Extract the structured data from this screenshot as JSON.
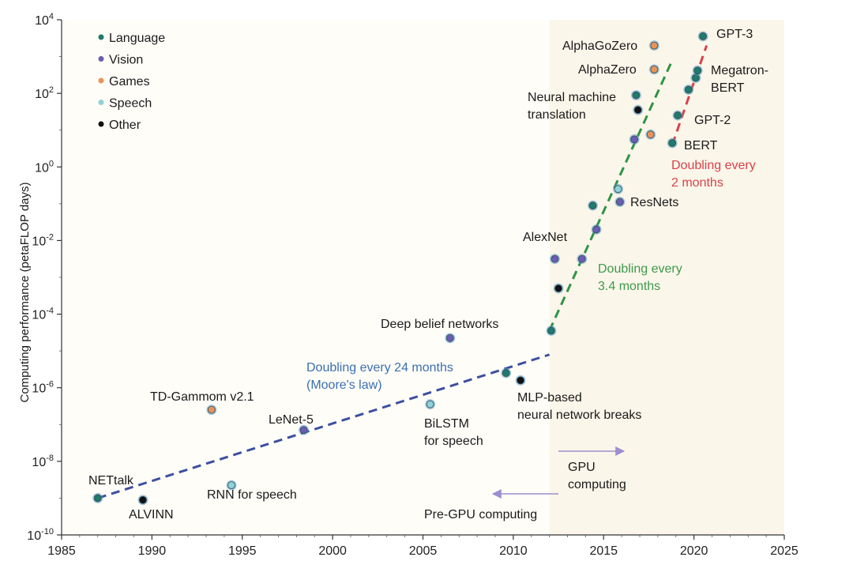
{
  "chart_data": {
    "type": "scatter",
    "title": "",
    "xlabel": "",
    "ylabel": "Computing performance (petaFLOP days)",
    "x_range": [
      1985,
      2025
    ],
    "y_log_range": [
      -10,
      4
    ],
    "x_ticks": [
      "1985",
      "1990",
      "1995",
      "2000",
      "2005",
      "2010",
      "2015",
      "2020",
      "2025"
    ],
    "y_ticks": [
      {
        "exp": 4,
        "base": "10",
        "sup": "4"
      },
      {
        "exp": 2,
        "base": "10",
        "sup": "2"
      },
      {
        "exp": 0,
        "base": "10",
        "sup": "0"
      },
      {
        "exp": -2,
        "base": "10",
        "sup": "-2"
      },
      {
        "exp": -4,
        "base": "10",
        "sup": "-4"
      },
      {
        "exp": -6,
        "base": "10",
        "sup": "-6"
      },
      {
        "exp": -8,
        "base": "10",
        "sup": "-8"
      },
      {
        "exp": -10,
        "base": "10",
        "sup": "-10"
      }
    ],
    "gpu_era_start": 2012,
    "legend": [
      {
        "name": "Language",
        "color": "#1f7a6a"
      },
      {
        "name": "Vision",
        "color": "#6a5db3"
      },
      {
        "name": "Games",
        "color": "#e8935a"
      },
      {
        "name": "Speech",
        "color": "#8ed3d6"
      },
      {
        "name": "Other",
        "color": "#111111"
      }
    ],
    "points": [
      {
        "year": 1987.0,
        "log": -9.0,
        "category": "Language",
        "label": "NETtalk"
      },
      {
        "year": 1989.5,
        "log": -9.05,
        "category": "Other",
        "label": "ALVINN"
      },
      {
        "year": 1993.3,
        "log": -6.6,
        "category": "Games",
        "label": "TD-Gammom v2.1"
      },
      {
        "year": 1994.4,
        "log": -8.65,
        "category": "Speech",
        "label": "RNN for speech"
      },
      {
        "year": 1998.4,
        "log": -7.15,
        "category": "Vision",
        "label": "LeNet-5"
      },
      {
        "year": 2005.4,
        "log": -6.45,
        "category": "Speech",
        "label": "BiLSTM for speech"
      },
      {
        "year": 2006.5,
        "log": -4.65,
        "category": "Vision",
        "label": "Deep belief networks"
      },
      {
        "year": 2009.6,
        "log": -5.6,
        "category": "Language",
        "label": ""
      },
      {
        "year": 2010.4,
        "log": -5.8,
        "category": "Other",
        "label": "MLP-based neural network breaks"
      },
      {
        "year": 2012.1,
        "log": -4.45,
        "category": "Language",
        "label": ""
      },
      {
        "year": 2012.3,
        "log": -2.5,
        "category": "Vision",
        "label": "AlexNet"
      },
      {
        "year": 2012.5,
        "log": -3.3,
        "category": "Other",
        "label": ""
      },
      {
        "year": 2013.8,
        "log": -2.5,
        "category": "Vision",
        "label": ""
      },
      {
        "year": 2014.4,
        "log": -1.05,
        "category": "Language",
        "label": ""
      },
      {
        "year": 2014.6,
        "log": -1.7,
        "category": "Vision",
        "label": ""
      },
      {
        "year": 2015.8,
        "log": -0.6,
        "category": "Speech",
        "label": ""
      },
      {
        "year": 2015.9,
        "log": -0.95,
        "category": "Vision",
        "label": "ResNets"
      },
      {
        "year": 2016.7,
        "log": 0.75,
        "category": "Vision",
        "label": ""
      },
      {
        "year": 2016.8,
        "log": 1.95,
        "category": "Language",
        "label": "Neural machine translation"
      },
      {
        "year": 2016.9,
        "log": 1.55,
        "category": "Other",
        "label": ""
      },
      {
        "year": 2017.6,
        "log": 0.88,
        "category": "Games",
        "label": ""
      },
      {
        "year": 2017.8,
        "log": 2.65,
        "category": "Games",
        "label": "AlphaZero"
      },
      {
        "year": 2017.8,
        "log": 3.3,
        "category": "Games",
        "label": "AlphaGoZero"
      },
      {
        "year": 2018.8,
        "log": 0.65,
        "category": "Language",
        "label": "BERT"
      },
      {
        "year": 2019.1,
        "log": 1.4,
        "category": "Language",
        "label": "GPT-2"
      },
      {
        "year": 2019.7,
        "log": 2.1,
        "category": "Language",
        "label": ""
      },
      {
        "year": 2020.1,
        "log": 2.42,
        "category": "Language",
        "label": ""
      },
      {
        "year": 2020.2,
        "log": 2.62,
        "category": "Language",
        "label": "Megatron-BERT"
      },
      {
        "year": 2020.5,
        "log": 3.55,
        "category": "Language",
        "label": "GPT-3"
      }
    ],
    "trend_lines": [
      {
        "name": "Doubling every 24 months (Moore's law)",
        "color": "#3d4fa0",
        "from": [
          1987,
          -9.0
        ],
        "to": [
          2012,
          -5.1
        ]
      },
      {
        "name": "Doubling every 3.4 months",
        "color": "#2e9445",
        "from": [
          2012,
          -4.45
        ],
        "to": [
          2018.8,
          2.9
        ]
      },
      {
        "name": "Doubling every 2 months",
        "color": "#d9414b",
        "from": [
          2018.8,
          0.6
        ],
        "to": [
          2020.7,
          3.3
        ]
      }
    ],
    "annotations": {
      "moore_line1": "Doubling every 24 months",
      "moore_line2": "(Moore's law)",
      "green_line1": "Doubling every",
      "green_line2": "3.4 months",
      "red_line1": "Doubling every",
      "red_line2": "2 months",
      "gpu_line1": "GPU",
      "gpu_line2": "computing",
      "pregpu": "Pre-GPU computing",
      "nmt_line1": "Neural machine",
      "nmt_line2": "translation",
      "megatron_line1": "Megatron-",
      "megatron_line2": "BERT",
      "bilstm_line1": "BiLSTM",
      "bilstm_line2": "for speech",
      "mlp_line1": "MLP-based",
      "mlp_line2": "neural network breaks"
    }
  }
}
